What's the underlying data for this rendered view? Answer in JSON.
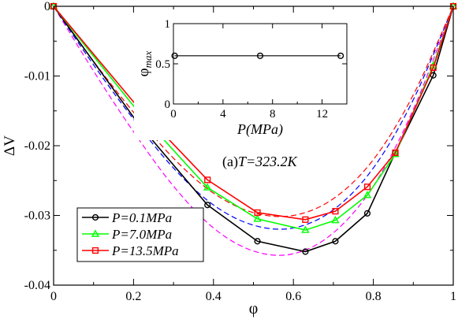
{
  "chart_data": [
    {
      "type": "line",
      "title": "(a)T=323.2K",
      "title_prefix": "(a)",
      "title_main": "T=323.2K",
      "xlabel": "φ",
      "ylabel": "ΔV",
      "xlim": [
        0,
        1
      ],
      "ylim": [
        -0.04,
        0
      ],
      "xticks": [
        0,
        0.2,
        0.4,
        0.6,
        0.8,
        1
      ],
      "xtick_labels": [
        "0",
        "0.2",
        "0.4",
        "0.6",
        "0.8",
        "1"
      ],
      "yticks": [
        0,
        -0.01,
        -0.02,
        -0.03,
        -0.04
      ],
      "ytick_labels": [
        "0",
        "-0.01",
        "-0.02",
        "-0.03",
        "-0.04"
      ],
      "grid": false,
      "legend_position": "bottom-left",
      "series": [
        {
          "name": "P=0.1MPa",
          "color": "#000000",
          "marker": "circle",
          "x": [
            0,
            0.21,
            0.385,
            0.51,
            0.63,
            0.705,
            0.785,
            0.855,
            0.95,
            1.0
          ],
          "y": [
            0,
            -0.0167,
            -0.0285,
            -0.0337,
            -0.0352,
            -0.0337,
            -0.0297,
            -0.021,
            -0.0099,
            0
          ]
        },
        {
          "name": "P=7.0MPa",
          "color": "#00ff00",
          "marker": "triangle",
          "x": [
            0,
            0.21,
            0.385,
            0.51,
            0.63,
            0.705,
            0.785,
            0.855,
            0.95,
            1.0
          ],
          "y": [
            0,
            -0.015,
            -0.026,
            -0.0305,
            -0.0321,
            -0.0307,
            -0.0271,
            -0.0212,
            -0.0085,
            0
          ]
        },
        {
          "name": "P=13.5MPa",
          "color": "#ff0000",
          "marker": "square",
          "x": [
            0,
            0.21,
            0.385,
            0.51,
            0.63,
            0.705,
            0.785,
            0.855,
            0.95,
            1.0
          ],
          "y": [
            0,
            -0.0144,
            -0.0249,
            -0.0296,
            -0.0306,
            -0.0294,
            -0.0259,
            -0.021,
            -0.0088,
            0
          ]
        }
      ],
      "fit_curves": [
        {
          "color": "#ff00ff",
          "x": [
            0,
            0.1,
            0.2,
            0.3,
            0.4,
            0.5,
            0.6,
            0.7,
            0.8,
            0.9,
            1.0
          ],
          "y": [
            0,
            -0.0093,
            -0.018,
            -0.0258,
            -0.0318,
            -0.0351,
            -0.0355,
            -0.0325,
            -0.0258,
            -0.0148,
            0
          ]
        },
        {
          "color": "#0000ff",
          "x": [
            0,
            0.1,
            0.2,
            0.3,
            0.4,
            0.5,
            0.6,
            0.7,
            0.8,
            0.9,
            1.0
          ],
          "y": [
            0,
            -0.0084,
            -0.0162,
            -0.0232,
            -0.0285,
            -0.0314,
            -0.0318,
            -0.0292,
            -0.0232,
            -0.0134,
            0
          ]
        },
        {
          "color": "#ff0000",
          "x": [
            0,
            0.1,
            0.2,
            0.3,
            0.4,
            0.5,
            0.6,
            0.7,
            0.8,
            0.9,
            1.0
          ],
          "y": [
            0,
            -0.0079,
            -0.0152,
            -0.0218,
            -0.0268,
            -0.0296,
            -0.03,
            -0.0276,
            -0.022,
            -0.0127,
            0
          ]
        }
      ]
    },
    {
      "type": "line",
      "title": "",
      "xlabel": "P(MPa)",
      "ylabel": "φmax",
      "ylabel_main": "φ",
      "ylabel_sub": "max",
      "xlim": [
        0,
        14
      ],
      "ylim": [
        0,
        1
      ],
      "xticks": [
        0,
        4,
        8,
        12
      ],
      "xtick_labels": [
        "0",
        "4",
        "8",
        "12"
      ],
      "yticks": [
        0,
        0.5,
        1
      ],
      "ytick_labels": [
        "0",
        "0.5",
        "1"
      ],
      "grid": false,
      "series": [
        {
          "color": "#000000",
          "marker": "circle",
          "x": [
            0.1,
            7.0,
            13.5
          ],
          "y": [
            0.6,
            0.6,
            0.6
          ]
        }
      ]
    }
  ]
}
